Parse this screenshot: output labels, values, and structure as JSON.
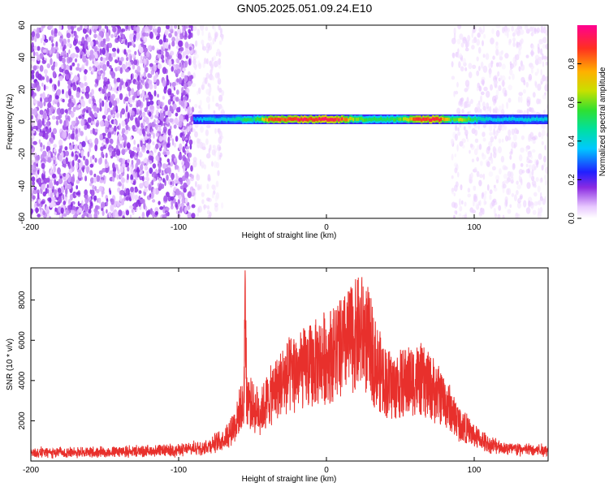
{
  "title": "GN05.2025.051.09.24.E10",
  "chart_data": [
    {
      "type": "heatmap",
      "name": "spectrogram",
      "xlabel": "Height of straight line (km)",
      "ylabel": "Frequency (Hz)",
      "xlim": [
        -200,
        150
      ],
      "ylim": [
        -60,
        60
      ],
      "xticks": [
        -200,
        -100,
        0,
        100
      ],
      "yticks": [
        -60,
        -40,
        -20,
        0,
        20,
        40,
        60
      ],
      "noise_regions": [
        {
          "x_from": -200,
          "x_to": -90,
          "density": "dense",
          "mean_amplitude": 0.08
        },
        {
          "x_from": -90,
          "x_to": -70,
          "density": "sparse",
          "mean_amplitude": 0.03
        },
        {
          "x_from": 85,
          "x_to": 150,
          "density": "sparse",
          "mean_amplitude": 0.03
        }
      ],
      "signal_band": {
        "x_from": -90,
        "x_to": 150,
        "center_freq_hz": 1.5,
        "half_width_hz": 3,
        "amplitude_profile": [
          [
            -90,
            0.35
          ],
          [
            -80,
            0.4
          ],
          [
            -70,
            0.4
          ],
          [
            -60,
            0.45
          ],
          [
            -55,
            0.55
          ],
          [
            -50,
            0.5
          ],
          [
            -45,
            0.6
          ],
          [
            -40,
            0.85
          ],
          [
            -35,
            0.9
          ],
          [
            -30,
            0.9
          ],
          [
            -20,
            0.95
          ],
          [
            -10,
            0.95
          ],
          [
            0,
            0.95
          ],
          [
            10,
            0.9
          ],
          [
            15,
            0.75
          ],
          [
            20,
            0.6
          ],
          [
            30,
            0.55
          ],
          [
            40,
            0.55
          ],
          [
            50,
            0.6
          ],
          [
            60,
            0.9
          ],
          [
            70,
            0.95
          ],
          [
            80,
            0.8
          ],
          [
            85,
            0.55
          ],
          [
            90,
            0.7
          ],
          [
            100,
            0.5
          ],
          [
            110,
            0.4
          ],
          [
            120,
            0.4
          ],
          [
            130,
            0.4
          ],
          [
            140,
            0.4
          ],
          [
            150,
            0.4
          ]
        ]
      },
      "colorbar": {
        "label": "Normalized spectral amplitude",
        "range": [
          0.0,
          1.0
        ],
        "ticks": [
          0.0,
          0.2,
          0.4,
          0.6,
          0.8
        ]
      }
    },
    {
      "type": "line",
      "name": "snr",
      "xlabel": "Height of straight line (km)",
      "ylabel": "SNR (10 * v/v)",
      "xlim": [
        -200,
        150
      ],
      "ylim": [
        0,
        9600
      ],
      "xticks": [
        -200,
        -100,
        0,
        100
      ],
      "yticks": [
        2000,
        4000,
        6000,
        8000
      ],
      "color": "#e8302c",
      "envelope": [
        [
          -200,
          500
        ],
        [
          -150,
          550
        ],
        [
          -120,
          600
        ],
        [
          -100,
          650
        ],
        [
          -90,
          750
        ],
        [
          -80,
          900
        ],
        [
          -70,
          1300
        ],
        [
          -65,
          1800
        ],
        [
          -60,
          2600
        ],
        [
          -58,
          3200
        ],
        [
          -56,
          3000
        ],
        [
          -55,
          9600
        ],
        [
          -54,
          4000
        ],
        [
          -50,
          3200
        ],
        [
          -45,
          3000
        ],
        [
          -40,
          3600
        ],
        [
          -30,
          4800
        ],
        [
          -20,
          5400
        ],
        [
          -10,
          5700
        ],
        [
          0,
          6300
        ],
        [
          10,
          6800
        ],
        [
          20,
          7600
        ],
        [
          25,
          7800
        ],
        [
          30,
          6800
        ],
        [
          35,
          5500
        ],
        [
          40,
          4800
        ],
        [
          45,
          4500
        ],
        [
          50,
          4600
        ],
        [
          55,
          4800
        ],
        [
          60,
          4900
        ],
        [
          65,
          4800
        ],
        [
          70,
          4500
        ],
        [
          80,
          3600
        ],
        [
          90,
          2300
        ],
        [
          100,
          1500
        ],
        [
          110,
          1000
        ],
        [
          120,
          800
        ],
        [
          130,
          700
        ],
        [
          150,
          650
        ]
      ]
    }
  ]
}
